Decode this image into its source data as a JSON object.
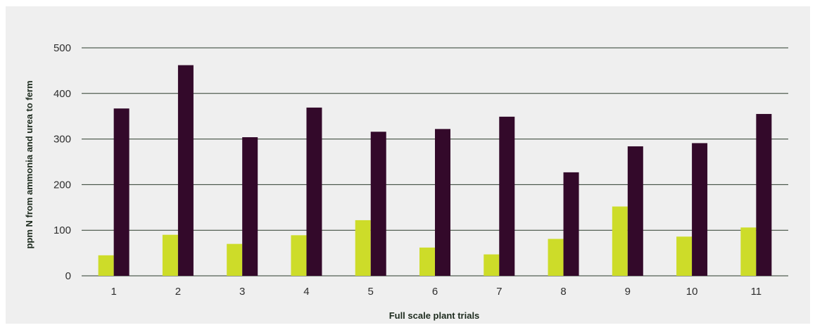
{
  "chart_data": {
    "type": "bar",
    "xlabel": "Full scale plant trials",
    "ylabel": "ppm N from ammonia and urea to ferm",
    "ylim": [
      0,
      500
    ],
    "yticks": [
      0,
      100,
      200,
      300,
      400,
      500
    ],
    "categories": [
      "1",
      "2",
      "3",
      "4",
      "5",
      "6",
      "7",
      "8",
      "9",
      "10",
      "11"
    ],
    "series": [
      {
        "values": [
          45,
          90,
          70,
          89,
          122,
          62,
          47,
          81,
          152,
          86,
          106
        ],
        "color": "#cddc29"
      },
      {
        "values": [
          367,
          462,
          304,
          369,
          316,
          322,
          349,
          227,
          284,
          291,
          355
        ],
        "color": "#33092a"
      }
    ],
    "grid": "horizontal",
    "grid_color": "#2b3b2d",
    "legend": "none"
  }
}
